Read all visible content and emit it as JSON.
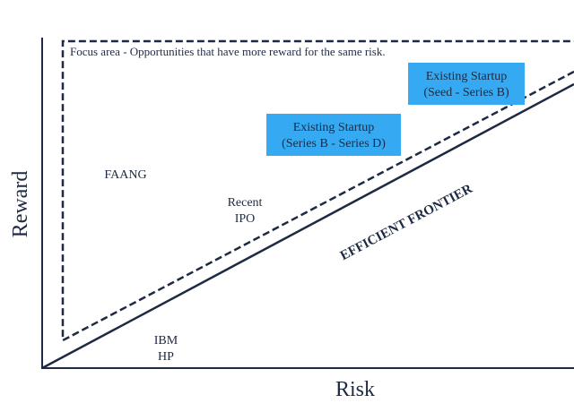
{
  "axes": {
    "y_label": "Reward",
    "x_label": "Risk"
  },
  "focus_area": "Focus area - Opportunities that have more reward for the same risk.",
  "frontier_label": "EFFICIENT FRONTIER",
  "boxes": [
    {
      "lines": [
        "Existing Startup",
        "(Seed - Series B)"
      ]
    },
    {
      "lines": [
        "Existing Startup",
        "(Series B - Series D)"
      ]
    }
  ],
  "labels": [
    {
      "lines": [
        "FAANG"
      ]
    },
    {
      "lines": [
        "Recent",
        "IPO"
      ]
    },
    {
      "lines": [
        "IBM",
        "HP"
      ]
    }
  ]
}
